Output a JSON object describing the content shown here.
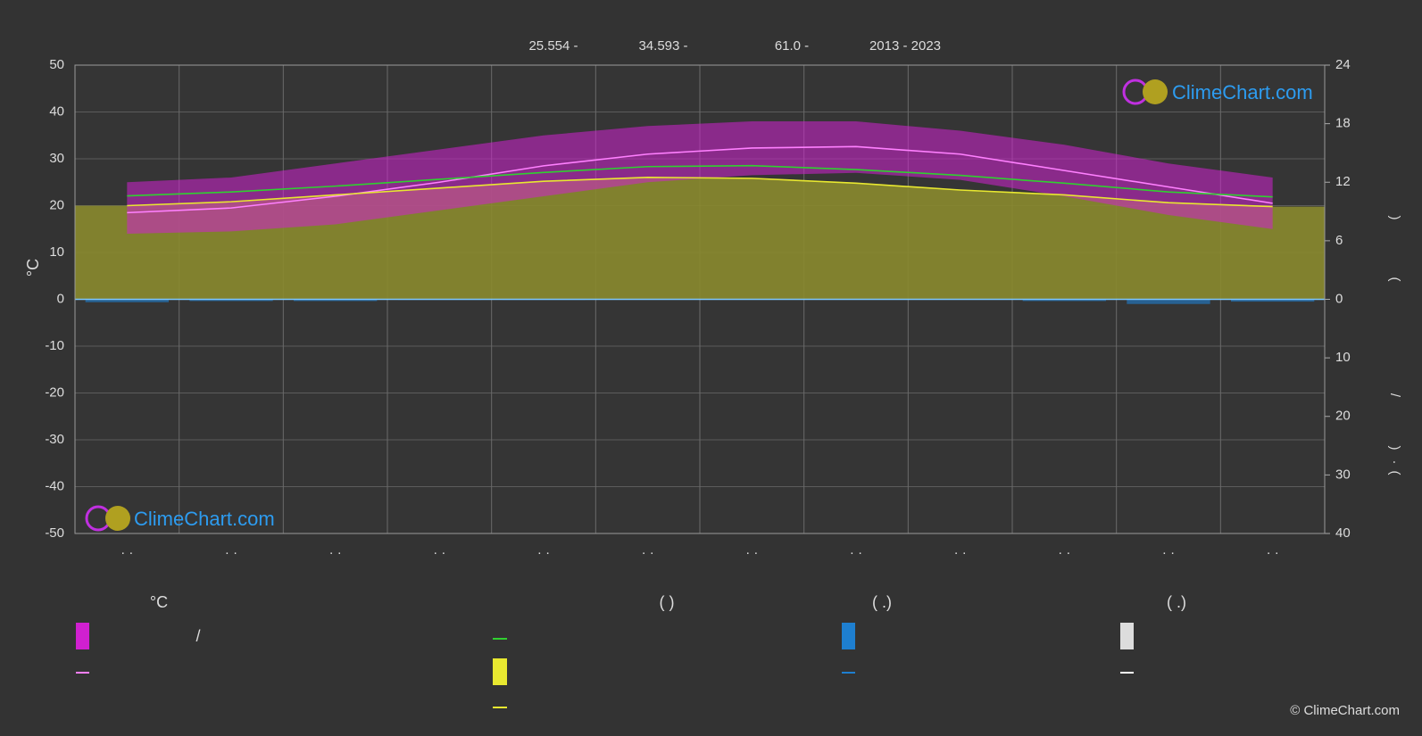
{
  "chart_data": {
    "type": "line",
    "header": [
      "25.554 -",
      "34.593 -",
      "61.0 -",
      "2013 - 2023"
    ],
    "y_label": "°C",
    "y2_labels": [
      ")",
      "(",
      "/",
      ")",
      "·",
      "("
    ],
    "categories": [
      "· ·",
      "· ·",
      "· ·",
      "· ·",
      "· ·",
      "· ·",
      "· ·",
      "· ·",
      "· ·",
      "· ·",
      "· ·",
      "· ·"
    ],
    "ylim": [
      -50,
      50
    ],
    "yticks": [
      -50,
      -40,
      -30,
      -20,
      -10,
      0,
      10,
      20,
      30,
      40,
      50
    ],
    "y2lim": [
      0,
      24
    ],
    "y2ticks": [
      0,
      6,
      12,
      18,
      24
    ],
    "y3lim": [
      0,
      40
    ],
    "y3ticks": [
      10,
      20,
      30,
      40
    ],
    "grid": true,
    "band": {
      "color": "#d020d0",
      "high": [
        25,
        26,
        29,
        32,
        35,
        37,
        38,
        38,
        36,
        33,
        29,
        26
      ],
      "low": [
        14,
        14.5,
        16,
        19,
        22,
        25,
        26.5,
        27,
        25.5,
        22,
        18,
        15
      ]
    },
    "series": [
      {
        "color": "#ff80ff",
        "values": [
          18.5,
          19.5,
          22,
          25,
          28.5,
          31,
          32.3,
          32.6,
          31,
          27.5,
          24,
          20.5
        ]
      },
      {
        "color": "#30d030",
        "axis": "y2",
        "values": [
          10.6,
          11.0,
          11.6,
          12.3,
          13.0,
          13.6,
          13.7,
          13.3,
          12.7,
          11.9,
          11.0,
          10.5
        ]
      },
      {
        "color": "#e8e830",
        "axis": "y2",
        "fill": "#8a8a2e",
        "values": [
          9.6,
          10.0,
          10.7,
          11.4,
          12.1,
          12.5,
          12.4,
          11.9,
          11.2,
          10.7,
          9.9,
          9.5
        ]
      },
      {
        "color": "#1e7fd0",
        "axis": "y3",
        "bars": true,
        "values": [
          0.5,
          0.3,
          0.3,
          0.1,
          0.1,
          0,
          0,
          0,
          0,
          0.3,
          0.8,
          0.4
        ]
      }
    ],
    "legend_headers": [
      "°C",
      "(            )",
      "(   .)",
      "(   .)"
    ],
    "legend_text": "/",
    "logo": "ClimeChart.com",
    "copyright": "© ClimeChart.com"
  }
}
